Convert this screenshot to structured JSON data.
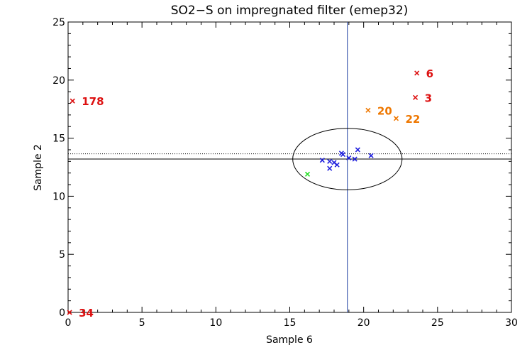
{
  "chart_data": {
    "type": "scatter",
    "title": "SO2−S on impregnated filter (emep32)",
    "xlabel": "Sample 6",
    "ylabel": "Sample 2",
    "xlim": [
      0,
      30
    ],
    "ylim": [
      0,
      25
    ],
    "x_ticks": [
      0,
      5,
      10,
      15,
      20,
      25,
      30
    ],
    "y_ticks": [
      0,
      5,
      10,
      15,
      20,
      25
    ],
    "grid": false,
    "reference_lines": {
      "vertical_x": 18.9,
      "horizontal_solid_y": 13.2,
      "horizontal_dotted_y": 13.65,
      "vertical_color": "#1f3fa0",
      "horizontal_color": "#000000"
    },
    "ellipse": {
      "cx": 18.9,
      "cy": 13.2,
      "rx": 3.7,
      "ry": 2.65
    },
    "colors": {
      "inside": "#1f1fdd",
      "special": "#22dd22",
      "warning": "#ee7700",
      "outlier": "#dd1111"
    },
    "series": [
      {
        "group": "inside",
        "color": "#1f1fdd",
        "points": [
          {
            "x": 17.2,
            "y": 13.1
          },
          {
            "x": 17.7,
            "y": 13.0
          },
          {
            "x": 17.7,
            "y": 12.4
          },
          {
            "x": 18.0,
            "y": 12.9
          },
          {
            "x": 18.2,
            "y": 12.7
          },
          {
            "x": 18.5,
            "y": 13.7
          },
          {
            "x": 18.6,
            "y": 13.6
          },
          {
            "x": 19.0,
            "y": 13.3
          },
          {
            "x": 19.4,
            "y": 13.2
          },
          {
            "x": 19.6,
            "y": 14.0
          },
          {
            "x": 20.5,
            "y": 13.5
          }
        ]
      },
      {
        "group": "special",
        "color": "#22dd22",
        "points": [
          {
            "x": 16.2,
            "y": 11.9
          }
        ]
      },
      {
        "group": "warning",
        "color": "#ee7700",
        "points": [
          {
            "x": 20.3,
            "y": 17.4,
            "label": "20"
          },
          {
            "x": 22.2,
            "y": 16.7,
            "label": "22"
          }
        ]
      },
      {
        "group": "outlier",
        "color": "#dd1111",
        "points": [
          {
            "x": 23.6,
            "y": 20.6,
            "label": "6"
          },
          {
            "x": 23.5,
            "y": 18.5,
            "label": "3"
          },
          {
            "x": 0.3,
            "y": 18.2,
            "label": "178"
          },
          {
            "x": 0.1,
            "y": 0.0,
            "label": "34"
          }
        ]
      }
    ]
  }
}
